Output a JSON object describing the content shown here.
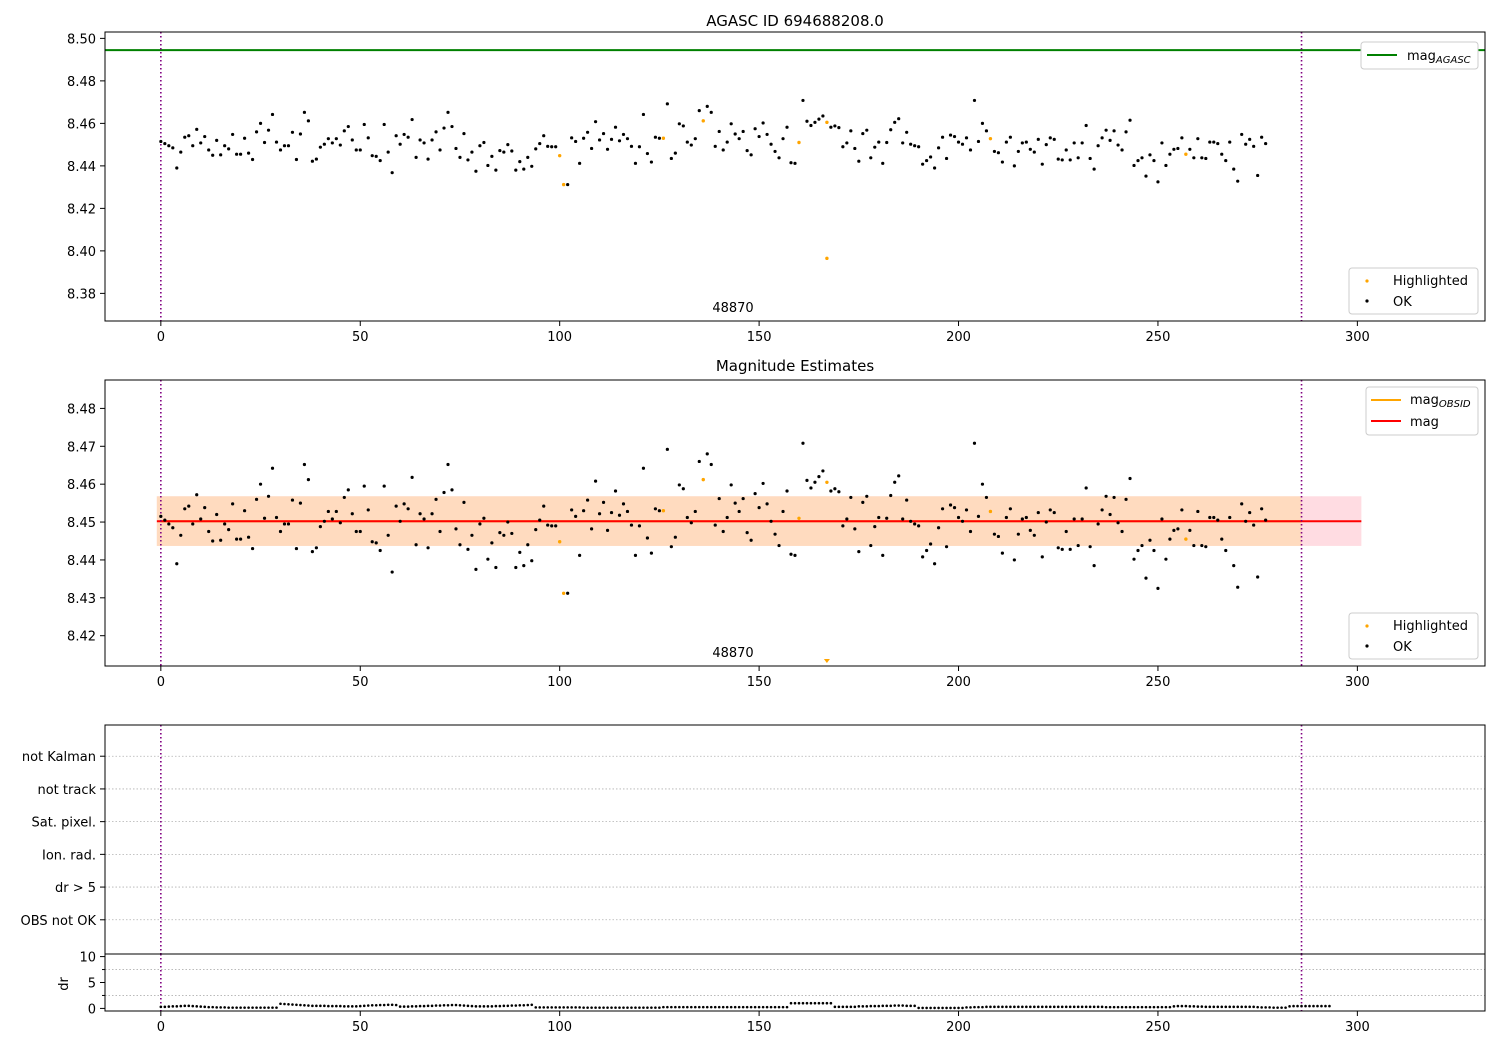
{
  "colors": {
    "ok": "#000000",
    "highlighted": "#ffa500",
    "agasc_line": "#008000",
    "mag_line": "#ff0000",
    "obsid_line": "#ffa500",
    "band_outer": "#ffc0cb",
    "band_inner": "#ffdab9",
    "obs_boundary": "#800080",
    "grid": "#b0b0b0"
  },
  "chart_data": [
    {
      "type": "scatter",
      "title": "AGASC ID 694688208.0",
      "xlim": [
        -14,
        332
      ],
      "ylim": [
        8.367,
        8.503
      ],
      "xticks": [
        "0",
        "50",
        "100",
        "150",
        "200",
        "250",
        "300"
      ],
      "yticks": [
        "8.50",
        "8.48",
        "8.46",
        "8.44",
        "8.42",
        "8.40",
        "8.38"
      ],
      "vlines": [
        0,
        286
      ],
      "obsid_annotation": "48870",
      "hline": {
        "y": 8.4945,
        "label": "mag",
        "label_sub": "AGASC"
      },
      "legend": {
        "lines": [
          {
            "label": "mag",
            "sub": "AGASC"
          }
        ],
        "markers": [
          "Highlighted",
          "OK"
        ]
      }
    },
    {
      "type": "scatter",
      "title": "Magnitude Estimates",
      "xlim": [
        -14,
        332
      ],
      "ylim": [
        8.412,
        8.4875
      ],
      "xticks": [
        "0",
        "50",
        "100",
        "150",
        "200",
        "250",
        "300"
      ],
      "yticks": [
        "8.48",
        "8.47",
        "8.46",
        "8.45",
        "8.44",
        "8.43",
        "8.42"
      ],
      "vlines": [
        0,
        286
      ],
      "obsid_annotation": "48870",
      "mag": 8.4502,
      "band_outer": [
        8.4437,
        8.4568
      ],
      "band_inner": [
        8.4437,
        8.4568
      ],
      "legend": {
        "lines": [
          {
            "label": "mag",
            "sub": "OBSID"
          },
          {
            "label": "mag",
            "sub": ""
          }
        ],
        "markers": [
          "Highlighted",
          "OK"
        ]
      }
    },
    {
      "type": "flags",
      "xlim": [
        -14,
        332
      ],
      "vlines": [
        0,
        286
      ],
      "categories": [
        "not Kalman",
        "not track",
        "Sat. pixel.",
        "Ion. rad.",
        "dr > 5",
        "OBS not OK"
      ]
    },
    {
      "type": "scatter",
      "ylabel": "dr",
      "xlim": [
        -14,
        332
      ],
      "ylim": [
        -0.5,
        10.5
      ],
      "xticks": [
        "0",
        "50",
        "100",
        "150",
        "200",
        "250",
        "300"
      ],
      "yticks": [
        "10",
        "5",
        "0"
      ],
      "vlines": [
        0,
        286
      ]
    }
  ],
  "series": {
    "mag": [
      8.4515,
      8.4505,
      8.4495,
      8.4485,
      8.439,
      8.4465,
      8.4535,
      8.4542,
      8.4495,
      8.4572,
      8.4508,
      8.4538,
      8.4475,
      8.445,
      8.452,
      8.4452,
      8.4495,
      8.448,
      8.4548,
      8.4455,
      8.4455,
      8.453,
      8.446,
      8.443,
      8.456,
      8.46,
      8.451,
      8.4568,
      8.4642,
      8.4512,
      8.4475,
      8.4495,
      8.4495,
      8.4558,
      8.443,
      8.455,
      8.4652,
      8.4612,
      8.4422,
      8.4432,
      8.4488,
      8.4502,
      8.4528,
      8.4508,
      8.4528,
      8.4498,
      8.4565,
      8.4585,
      8.4522,
      8.4475,
      8.4475,
      8.4595,
      8.4532,
      8.4448,
      8.4445,
      8.4425,
      8.4595,
      8.4465,
      8.4368,
      8.4542,
      8.4502,
      8.4548,
      8.4535,
      8.4618,
      8.444,
      8.4522,
      8.4508,
      8.4432,
      8.4522,
      8.456,
      8.4475,
      8.4578,
      8.4652,
      8.4585,
      8.4482,
      8.444,
      8.4552,
      8.4428,
      8.4465,
      8.4375,
      8.4495,
      8.451,
      8.4402,
      8.4445,
      8.438,
      8.4472,
      8.4465,
      8.45,
      8.447,
      8.438,
      8.442,
      8.4385,
      8.444,
      8.4398,
      8.448,
      8.4505,
      8.4542,
      8.4492,
      8.449,
      8.449,
      8.4448,
      8.4312,
      8.4312,
      8.4532,
      8.4515,
      8.4412,
      8.453,
      8.4558,
      8.4482,
      8.4608,
      8.4522,
      8.4552,
      8.4478,
      8.4525,
      8.4582,
      8.4518,
      8.4548,
      8.4528,
      8.4492,
      8.4412,
      8.449,
      8.4642,
      8.4458,
      8.4418,
      8.4535,
      8.453,
      8.453,
      8.4692,
      8.4435,
      8.446,
      8.4598,
      8.4588,
      8.4512,
      8.4498,
      8.4528,
      8.466,
      8.4612,
      8.468,
      8.4652,
      8.4492,
      8.4562,
      8.4475,
      8.4512,
      8.4598,
      8.455,
      8.4528,
      8.4562,
      8.4472,
      8.4452,
      8.4575,
      8.4538,
      8.4602,
      8.4548,
      8.4502,
      8.4468,
      8.4438,
      8.4528,
      8.4582,
      8.4415,
      8.4412,
      8.451,
      8.4708,
      8.461,
      8.459,
      8.4605,
      8.462,
      8.4635,
      8.4605,
      8.4582,
      8.4588,
      8.458,
      8.449,
      8.4508,
      8.4565,
      8.4482,
      8.4422,
      8.4552,
      8.4568,
      8.4438,
      8.4488,
      8.4512,
      8.4412,
      8.451,
      8.457,
      8.4605,
      8.4622,
      8.4508,
      8.4558,
      8.4502,
      8.4495,
      8.449,
      8.4408,
      8.4425,
      8.4442,
      8.439,
      8.4485,
      8.4535,
      8.4435,
      8.4545,
      8.4538,
      8.4512,
      8.4502,
      8.4532,
      8.4475,
      8.4708,
      8.4515,
      8.46,
      8.4565,
      8.4528,
      8.4468,
      8.4462,
      8.4418,
      8.4512,
      8.4535,
      8.44,
      8.4468,
      8.4508,
      8.4512,
      8.4478,
      8.4465,
      8.4525,
      8.4408,
      8.45,
      8.4532,
      8.4525,
      8.4432,
      8.4428,
      8.4475,
      8.4428,
      8.4508,
      8.4438,
      8.4508,
      8.459,
      8.4435,
      8.4385,
      8.4495,
      8.4532,
      8.4568,
      8.452,
      8.4565,
      8.4498,
      8.4475,
      8.456,
      8.4615,
      8.4402,
      8.4425,
      8.4438,
      8.4352,
      8.4452,
      8.4425,
      8.4325,
      8.4508,
      8.4402,
      8.4455,
      8.4478,
      8.4482,
      8.4532,
      8.4455,
      8.4478,
      8.4438,
      8.4528,
      8.4438,
      8.4435,
      8.4512,
      8.4512,
      8.4505,
      8.4455,
      8.4425,
      8.4512,
      8.4385,
      8.4328,
      8.4548,
      8.4502,
      8.4525,
      8.4492,
      8.4355,
      8.4535,
      8.4505
    ],
    "highlighted_x": [
      100,
      101,
      126,
      136,
      160,
      167,
      208,
      257
    ],
    "dr": [
      0.3,
      0.3,
      0.35,
      0.4,
      0.4,
      0.45,
      0.5,
      0.5,
      0.45,
      0.4,
      0.35,
      0.3,
      0.25,
      0.25,
      0.2,
      0.2,
      0.2,
      0.15,
      0.15,
      0.15,
      0.15,
      0.15,
      0.15,
      0.15,
      0.15,
      0.15,
      0.15,
      0.15,
      0.15,
      0.15,
      0.9,
      0.85,
      0.8,
      0.75,
      0.7,
      0.65,
      0.6,
      0.55,
      0.5,
      0.5,
      0.5,
      0.5,
      0.45,
      0.45,
      0.45,
      0.45,
      0.4,
      0.4,
      0.4,
      0.4,
      0.45,
      0.5,
      0.55,
      0.6,
      0.6,
      0.65,
      0.65,
      0.7,
      0.7,
      0.65,
      0.35,
      0.35,
      0.35,
      0.4,
      0.4,
      0.45,
      0.45,
      0.5,
      0.5,
      0.55,
      0.55,
      0.6,
      0.6,
      0.65,
      0.65,
      0.6,
      0.55,
      0.5,
      0.45,
      0.4,
      0.4,
      0.4,
      0.4,
      0.4,
      0.45,
      0.45,
      0.5,
      0.5,
      0.55,
      0.55,
      0.6,
      0.6,
      0.65,
      0.7,
      0.2,
      0.2,
      0.2,
      0.2,
      0.2,
      0.2,
      0.2,
      0.2,
      0.2,
      0.2,
      0.2,
      0.2,
      0.15,
      0.15,
      0.15,
      0.15,
      0.15,
      0.15,
      0.15,
      0.15,
      0.15,
      0.15,
      0.15,
      0.15,
      0.15,
      0.15,
      0.15,
      0.15,
      0.15,
      0.15,
      0.15,
      0.15,
      0.25,
      0.25,
      0.25,
      0.25,
      0.25,
      0.25,
      0.25,
      0.25,
      0.25,
      0.25,
      0.25,
      0.25,
      0.25,
      0.25,
      0.25,
      0.25,
      0.25,
      0.25,
      0.25,
      0.25,
      0.25,
      0.25,
      0.25,
      0.25,
      0.25,
      0.25,
      0.25,
      0.25,
      0.25,
      0.25,
      0.25,
      0.25,
      1.0,
      1.0,
      1.0,
      1.0,
      1.0,
      1.0,
      1.0,
      1.0,
      1.0,
      1.0,
      1.0,
      0.3,
      0.3,
      0.3,
      0.3,
      0.3,
      0.3,
      0.4,
      0.4,
      0.4,
      0.45,
      0.45,
      0.45,
      0.5,
      0.5,
      0.5,
      0.55,
      0.55,
      0.55,
      0.5,
      0.5,
      0.5,
      0.1,
      0.1,
      0.1,
      0.1,
      0.1,
      0.1,
      0.1,
      0.1,
      0.1,
      0.1,
      0.1,
      0.1,
      0.2,
      0.2,
      0.25,
      0.25,
      0.25,
      0.3,
      0.3,
      0.3,
      0.3,
      0.3,
      0.3,
      0.3,
      0.3,
      0.3,
      0.3,
      0.3,
      0.3,
      0.3,
      0.3,
      0.3,
      0.3,
      0.3,
      0.3,
      0.3,
      0.3,
      0.3,
      0.3,
      0.3,
      0.3,
      0.3,
      0.3,
      0.3,
      0.3,
      0.3,
      0.3,
      0.25,
      0.25,
      0.25,
      0.25,
      0.25,
      0.25,
      0.25,
      0.25,
      0.25,
      0.25,
      0.25,
      0.25,
      0.25,
      0.25,
      0.25,
      0.25,
      0.25,
      0.4,
      0.45,
      0.45,
      0.45,
      0.4,
      0.4,
      0.35,
      0.35,
      0.3,
      0.3,
      0.3,
      0.3,
      0.3,
      0.3,
      0.3,
      0.3,
      0.3,
      0.3,
      0.3,
      0.3,
      0.3,
      0.25,
      0.2,
      0.2,
      0.2,
      0.15,
      0.15,
      0.15,
      0.15,
      0.4,
      0.45,
      0.45,
      0.45,
      0.45,
      0.45,
      0.45,
      0.45,
      0.45,
      0.45,
      0.45
    ]
  }
}
